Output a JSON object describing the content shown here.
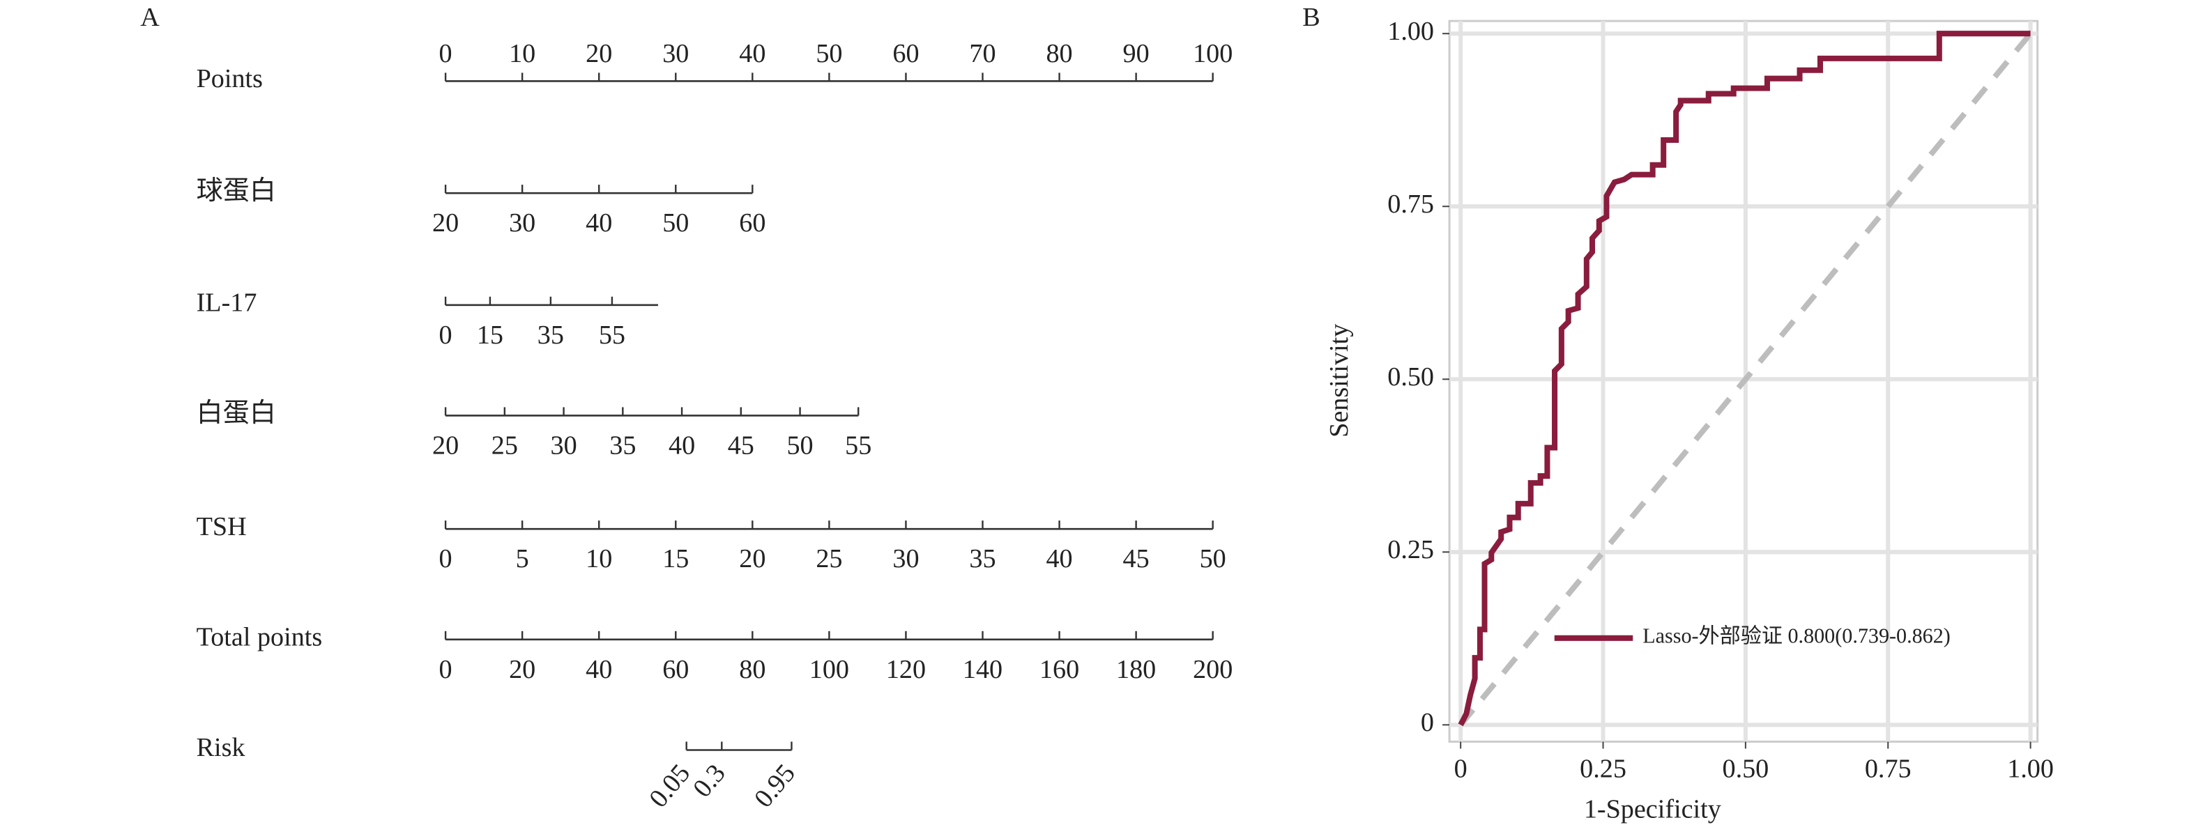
{
  "chart_data": [
    {
      "type": "nomogram",
      "panel_label": "A",
      "xlim": [
        0,
        100
      ],
      "rows": [
        {
          "name": "Points",
          "tick_side": "top",
          "ticks": [
            0,
            10,
            20,
            30,
            40,
            50,
            60,
            70,
            80,
            90,
            100
          ],
          "ticks_at": [
            0,
            10,
            20,
            30,
            40,
            50,
            60,
            70,
            80,
            90,
            100
          ]
        },
        {
          "name": "球蛋白",
          "ticks": [
            20,
            30,
            40,
            50,
            60
          ],
          "ticks_at": [
            0,
            10,
            20,
            30,
            40
          ]
        },
        {
          "name": "IL-17",
          "ticks": [
            0,
            15,
            35,
            55
          ],
          "ticks_at": [
            0,
            5.8,
            13.7,
            21.7
          ],
          "lim_at": [
            0,
            27.7
          ]
        },
        {
          "name": "白蛋白",
          "ticks": [
            20,
            25,
            30,
            35,
            40,
            45,
            50,
            55
          ],
          "ticks_at": [
            0,
            7.7,
            15.4,
            23.1,
            30.8,
            38.5,
            46.2,
            53.8
          ]
        },
        {
          "name": "TSH",
          "ticks": [
            0,
            5,
            10,
            15,
            20,
            25,
            30,
            35,
            40,
            45,
            50
          ],
          "ticks_at": [
            0,
            10,
            20,
            30,
            40,
            50,
            60,
            70,
            80,
            90,
            100
          ]
        },
        {
          "name": "Total points",
          "ticks": [
            0,
            20,
            40,
            60,
            80,
            100,
            120,
            140,
            160,
            180,
            200
          ],
          "ticks_at": [
            0,
            10,
            20,
            30,
            40,
            50,
            60,
            70,
            80,
            90,
            100
          ]
        },
        {
          "name": "Risk",
          "rotate_labels": true,
          "ticks": [
            0.05,
            0.3,
            0.95
          ],
          "ticks_at": [
            31.4,
            36,
            45.1
          ]
        }
      ]
    },
    {
      "type": "line",
      "panel_label": "B",
      "x_label": "1-Specificity",
      "y_label": "Sensitivity",
      "xlim": [
        0,
        1
      ],
      "ylim": [
        0,
        1
      ],
      "xticks": [
        0,
        0.25,
        {
          "value": 0.5,
          "label": "0.50"
        },
        0.75,
        {
          "value": 1,
          "label": "1.00"
        }
      ],
      "yticks": [
        0,
        0.25,
        {
          "value": 0.5,
          "label": "0.50"
        },
        0.75,
        {
          "value": 1,
          "label": "1.00"
        }
      ],
      "grid": true,
      "diagonal": true,
      "legend": "bottom-right",
      "series": [
        {
          "name": "Lasso-外部验证 0.800(0.739-0.862)",
          "color": "#8a1c3e",
          "x": [
            0,
            0.01,
            0.017,
            0.025,
            0.025,
            0.034,
            0.034,
            0.042,
            0.042,
            0.054,
            0.054,
            0.071,
            0.071,
            0.086,
            0.086,
            0.101,
            0.101,
            0.123,
            0.123,
            0.14,
            0.14,
            0.152,
            0.152,
            0.165,
            0.165,
            0.177,
            0.177,
            0.189,
            0.189,
            0.206,
            0.206,
            0.221,
            0.221,
            0.231,
            0.231,
            0.243,
            0.243,
            0.256,
            0.256,
            0.27,
            0.287,
            0.3,
            0.337,
            0.337,
            0.356,
            0.356,
            0.378,
            0.378,
            0.386,
            0.386,
            0.435,
            0.435,
            0.479,
            0.479,
            0.538,
            0.538,
            0.595,
            0.595,
            0.631,
            0.631,
            0.84,
            0.84,
            1
          ],
          "values": [
            0,
            0.016,
            0.043,
            0.067,
            0.097,
            0.097,
            0.138,
            0.138,
            0.233,
            0.239,
            0.249,
            0.269,
            0.279,
            0.283,
            0.3,
            0.3,
            0.32,
            0.32,
            0.35,
            0.35,
            0.36,
            0.36,
            0.401,
            0.401,
            0.512,
            0.522,
            0.573,
            0.583,
            0.599,
            0.603,
            0.623,
            0.634,
            0.674,
            0.684,
            0.704,
            0.715,
            0.729,
            0.735,
            0.765,
            0.785,
            0.789,
            0.796,
            0.796,
            0.81,
            0.81,
            0.846,
            0.846,
            0.887,
            0.897,
            0.903,
            0.903,
            0.913,
            0.913,
            0.921,
            0.921,
            0.935,
            0.935,
            0.947,
            0.947,
            0.964,
            0.964,
            1,
            1
          ]
        }
      ]
    }
  ]
}
